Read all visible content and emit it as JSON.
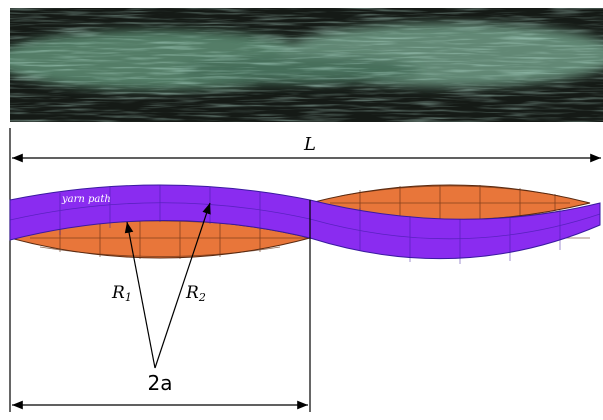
{
  "photo": {
    "caption": null
  },
  "dimensions": {
    "length": "L",
    "half_period": "2a"
  },
  "labels": {
    "yarn_path": "yarn path",
    "r1": {
      "base": "R",
      "sub": "1"
    },
    "r2": {
      "base": "R",
      "sub": "2"
    }
  }
}
